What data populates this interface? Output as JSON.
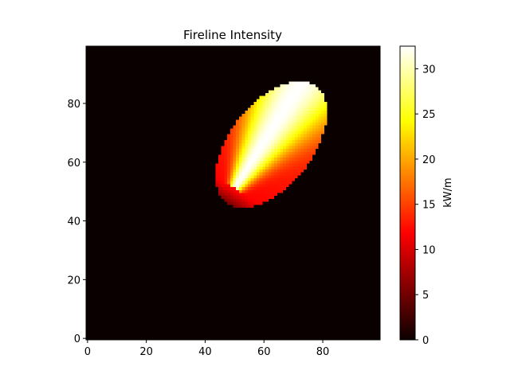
{
  "chart_data": {
    "type": "heatmap",
    "title": "Fireline Intensity",
    "xlabel": "",
    "ylabel": "",
    "colorbar_label": "kW/m",
    "colormap": "hot",
    "origin": "lower",
    "grid_shape": [
      100,
      100
    ],
    "xlim": [
      0,
      99
    ],
    "ylim": [
      0,
      99
    ],
    "x_ticks": [
      0,
      20,
      40,
      60,
      80
    ],
    "y_ticks": [
      0,
      20,
      40,
      60,
      80
    ],
    "colorbar_range": [
      0,
      32.5
    ],
    "colorbar_ticks": [
      0,
      5,
      10,
      15,
      20,
      25,
      30
    ],
    "background_value": 0,
    "burned_region": {
      "shape": "ellipse",
      "ignition_point": [
        50,
        51
      ],
      "center": [
        62.5,
        66
      ],
      "semi_axis_major": 25,
      "semi_axis_minor": 14,
      "major_axis_angle_deg": 52,
      "head_direction": [
        72,
        86
      ],
      "value_at_flanks": 12,
      "value_at_back": 2,
      "value_along_spread_axis": 32.5
    }
  }
}
